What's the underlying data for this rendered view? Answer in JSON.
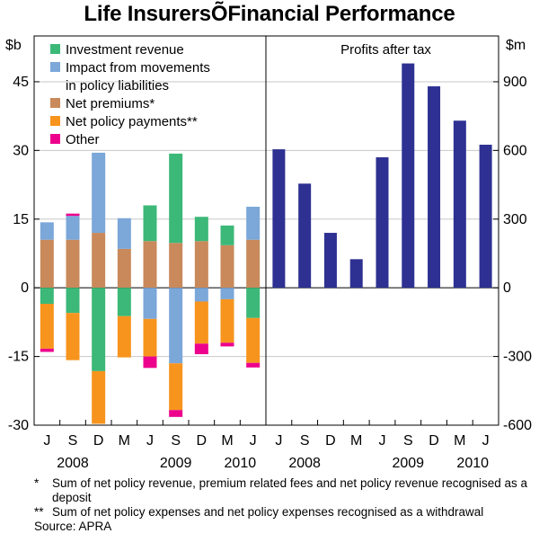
{
  "chart_data": {
    "title": "Life InsurersÕFinancial Performance",
    "type": "bar",
    "x_tick_labels": [
      "J",
      "S",
      "D",
      "M",
      "J",
      "S",
      "D",
      "M",
      "J"
    ],
    "year_labels": [
      {
        "label": "2008",
        "category_index": 1
      },
      {
        "label": "2009",
        "category_index": 5
      },
      {
        "label": "2010",
        "category_index": 7.5
      }
    ],
    "panels": [
      {
        "name": "left",
        "type": "stacked-bar",
        "unit_label": "$b",
        "ylim": [
          -30,
          55
        ],
        "yticks": [
          -30,
          -15,
          0,
          15,
          30,
          45
        ],
        "legend": [
          {
            "label": "Investment revenue",
            "color": "#3cb878"
          },
          {
            "label": "Impact from movements",
            "label2": "in policy liabilities",
            "color": "#7ba7d9"
          },
          {
            "label": "Net premiums*",
            "color": "#c9895a"
          },
          {
            "label": "Net policy payments**",
            "color": "#f7941d"
          },
          {
            "label": "Other",
            "color": "#ec008c"
          }
        ],
        "categories": [
          "J",
          "S",
          "D",
          "M",
          "J",
          "S",
          "D",
          "M",
          "J"
        ],
        "series": [
          {
            "name": "Net premiums*",
            "color": "#c9895a",
            "values": [
              10.5,
              10.5,
              12,
              8.5,
              10.2,
              9.8,
              10.2,
              9.3,
              10.5
            ]
          },
          {
            "name": "Impact from movements in policy liabilities",
            "color": "#7ba7d9",
            "values": [
              3.8,
              5.2,
              17.5,
              6.7,
              -6.8,
              -16.5,
              -3.0,
              -2.5,
              7.2
            ]
          },
          {
            "name": "Investment revenue",
            "color": "#3cb878",
            "values": [
              -3.5,
              -5.5,
              -18.2,
              -6.2,
              7.8,
              19.5,
              5.3,
              4.3,
              -6.6
            ]
          },
          {
            "name": "Net policy payments**",
            "color": "#f7941d",
            "values": [
              -9.8,
              -10.3,
              -11.5,
              -9.0,
              -8.2,
              -10.2,
              -9.2,
              -9.5,
              -9.8
            ]
          },
          {
            "name": "Other",
            "color": "#ec008c",
            "values": [
              -0.7,
              0.5,
              0,
              0,
              -2.5,
              -1.5,
              -2.3,
              -0.8,
              -1.0
            ]
          }
        ]
      },
      {
        "name": "right",
        "type": "bar",
        "title": "Profits after tax",
        "unit_label": "$m",
        "ylim": [
          -600,
          1100
        ],
        "yticks": [
          -600,
          -300,
          0,
          300,
          600,
          900
        ],
        "color": "#2e3192",
        "categories": [
          "J",
          "S",
          "D",
          "M",
          "J",
          "S",
          "D",
          "M",
          "J"
        ],
        "values": [
          605,
          455,
          240,
          125,
          570,
          980,
          880,
          730,
          625
        ]
      }
    ]
  },
  "footnotes": [
    {
      "marker": "*",
      "text": "Sum of net policy revenue, premium related fees and net policy revenue recognised as a deposit"
    },
    {
      "marker": "**",
      "text": "Sum of net policy expenses and net policy expenses recognised as a withdrawal"
    }
  ],
  "source": "Source: APRA"
}
